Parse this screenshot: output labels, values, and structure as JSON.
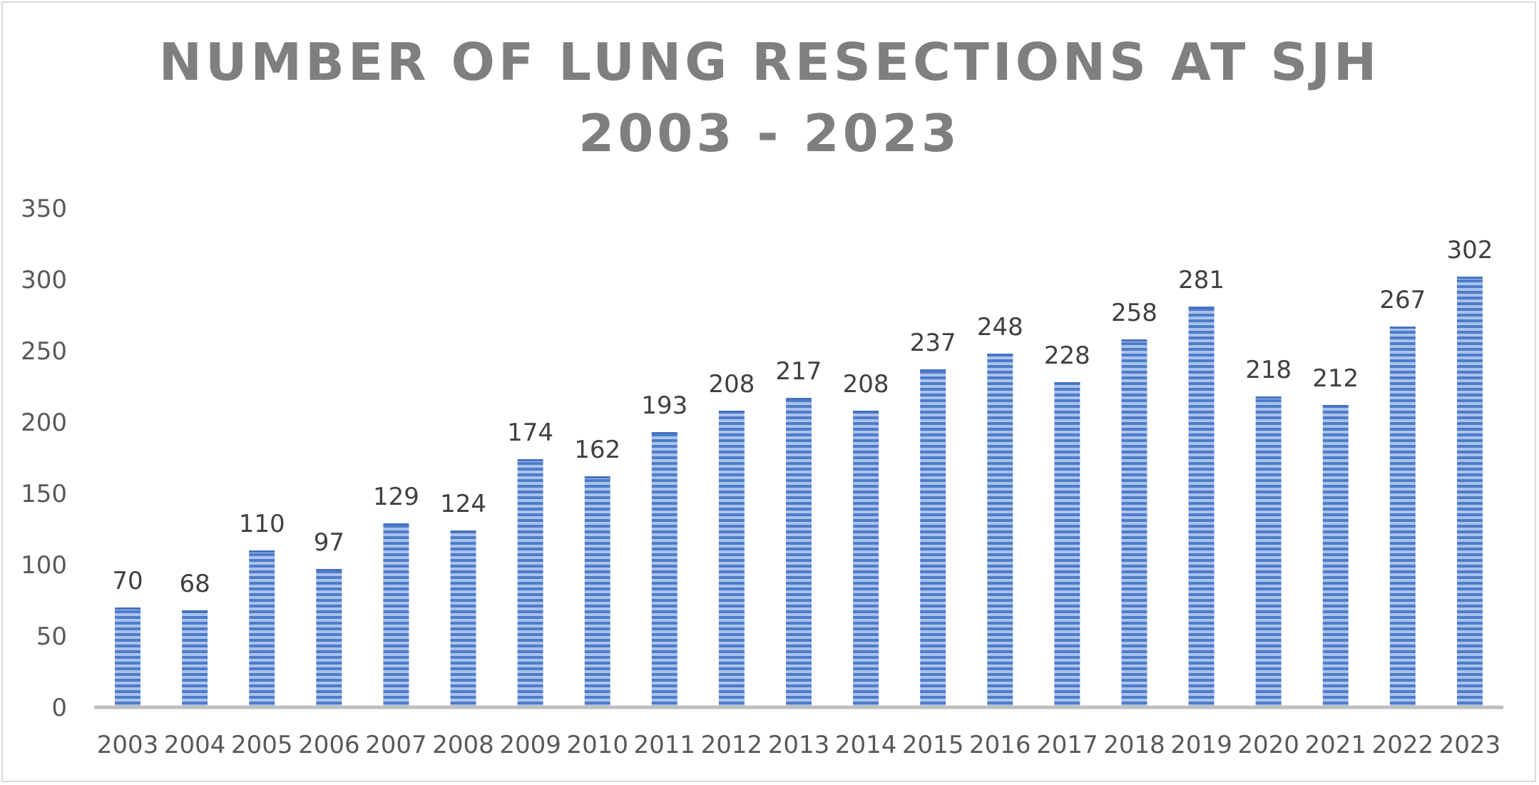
{
  "chart_data": {
    "type": "bar",
    "title_lines": [
      "NUMBER OF LUNG RESECTIONS AT SJH",
      "2003 - 2023"
    ],
    "categories": [
      "2003",
      "2004",
      "2005",
      "2006",
      "2007",
      "2008",
      "2009",
      "2010",
      "2011",
      "2012",
      "2013",
      "2014",
      "2015",
      "2016",
      "2017",
      "2018",
      "2019",
      "2020",
      "2021",
      "2022",
      "2023"
    ],
    "series": [
      {
        "name": "Lung resections",
        "values": [
          70,
          68,
          110,
          97,
          129,
          124,
          174,
          162,
          193,
          208,
          217,
          208,
          237,
          248,
          228,
          258,
          281,
          218,
          212,
          267,
          302
        ]
      }
    ],
    "data_labels": [
      "70",
      "68",
      "110",
      "97",
      "129",
      "124",
      "174",
      "162",
      "193",
      "208",
      "217",
      "208",
      "237",
      "248",
      "228",
      "258",
      "281",
      "218",
      "212",
      "267",
      "302"
    ],
    "y_ticks": [
      "0",
      "50",
      "100",
      "150",
      "200",
      "250",
      "300",
      "350"
    ],
    "ylim": [
      0,
      350
    ],
    "xlabel": "",
    "ylabel": "",
    "grid": false,
    "legend": "none",
    "colors": {
      "bar_light": "#a9c3ea",
      "bar_dark": "#4472c4",
      "axis_line": "#bfbfbf",
      "tick_text": "#595959",
      "title_text": "#7f7f7f",
      "data_label_text": "#404040"
    }
  }
}
